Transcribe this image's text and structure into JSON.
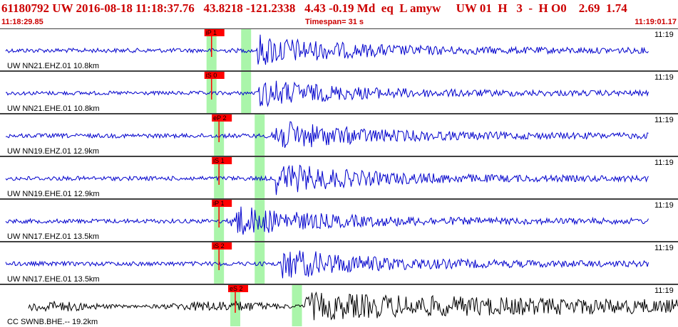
{
  "header": {
    "event_line": "61180792 UW 2016-08-18 11:18:37.76   43.8218 -121.2338   4.43 -0.19 Md  eq  L amyw     UW 01  H   3  -  H O0    2.69  1.74",
    "start_time": "11:18:29.85",
    "timespan": "Timespan=  31 s",
    "end_time": "11:19:01.17"
  },
  "colors": {
    "trace": "#0000cc",
    "last_trace": "#000000",
    "pick": "#ff0000",
    "window": "#aaf5aa",
    "header_text": "#cc0000",
    "separator": "#000000"
  },
  "traces": [
    {
      "label": "UW NN21.EHZ.01 10.8km",
      "time_label": "11:19",
      "pick_label": "iP 1",
      "windows": [
        0.312,
        0.363
      ],
      "amp": 1.0,
      "onset": 0.38
    },
    {
      "label": "UW NN21.EHE.01 10.8km",
      "time_label": "11:19",
      "pick_label": "iS 0",
      "windows": [
        0.312,
        0.363
      ],
      "amp": 0.9,
      "onset": 0.38
    },
    {
      "label": "UW NN19.EHZ.01 12.9km",
      "time_label": "11:19",
      "pick_label": "eP 2",
      "windows": [
        0.323,
        0.383
      ],
      "amp": 1.0,
      "onset": 0.4
    },
    {
      "label": "UW NN19.EHE.01 12.9km",
      "time_label": "11:19",
      "pick_label": "iS 1",
      "windows": [
        0.323,
        0.383
      ],
      "amp": 1.0,
      "onset": 0.405
    },
    {
      "label": "UW NN17.EHZ.01 13.5km",
      "time_label": "11:19",
      "pick_label": "iP 1",
      "windows": [
        0.323,
        0.383
      ],
      "amp": 1.0,
      "onset": 0.34
    },
    {
      "label": "UW NN17.EHE.01 13.5km",
      "time_label": "11:19",
      "pick_label": "iS 2",
      "windows": [
        0.323,
        0.383
      ],
      "amp": 1.0,
      "onset": 0.415
    },
    {
      "label": "CC SWNB.BHE.-- 19.2km",
      "time_label": "11:19",
      "pick_label": "eS 2",
      "windows": [
        0.347,
        0.438
      ],
      "amp": 1.0,
      "onset": 0.45
    }
  ]
}
